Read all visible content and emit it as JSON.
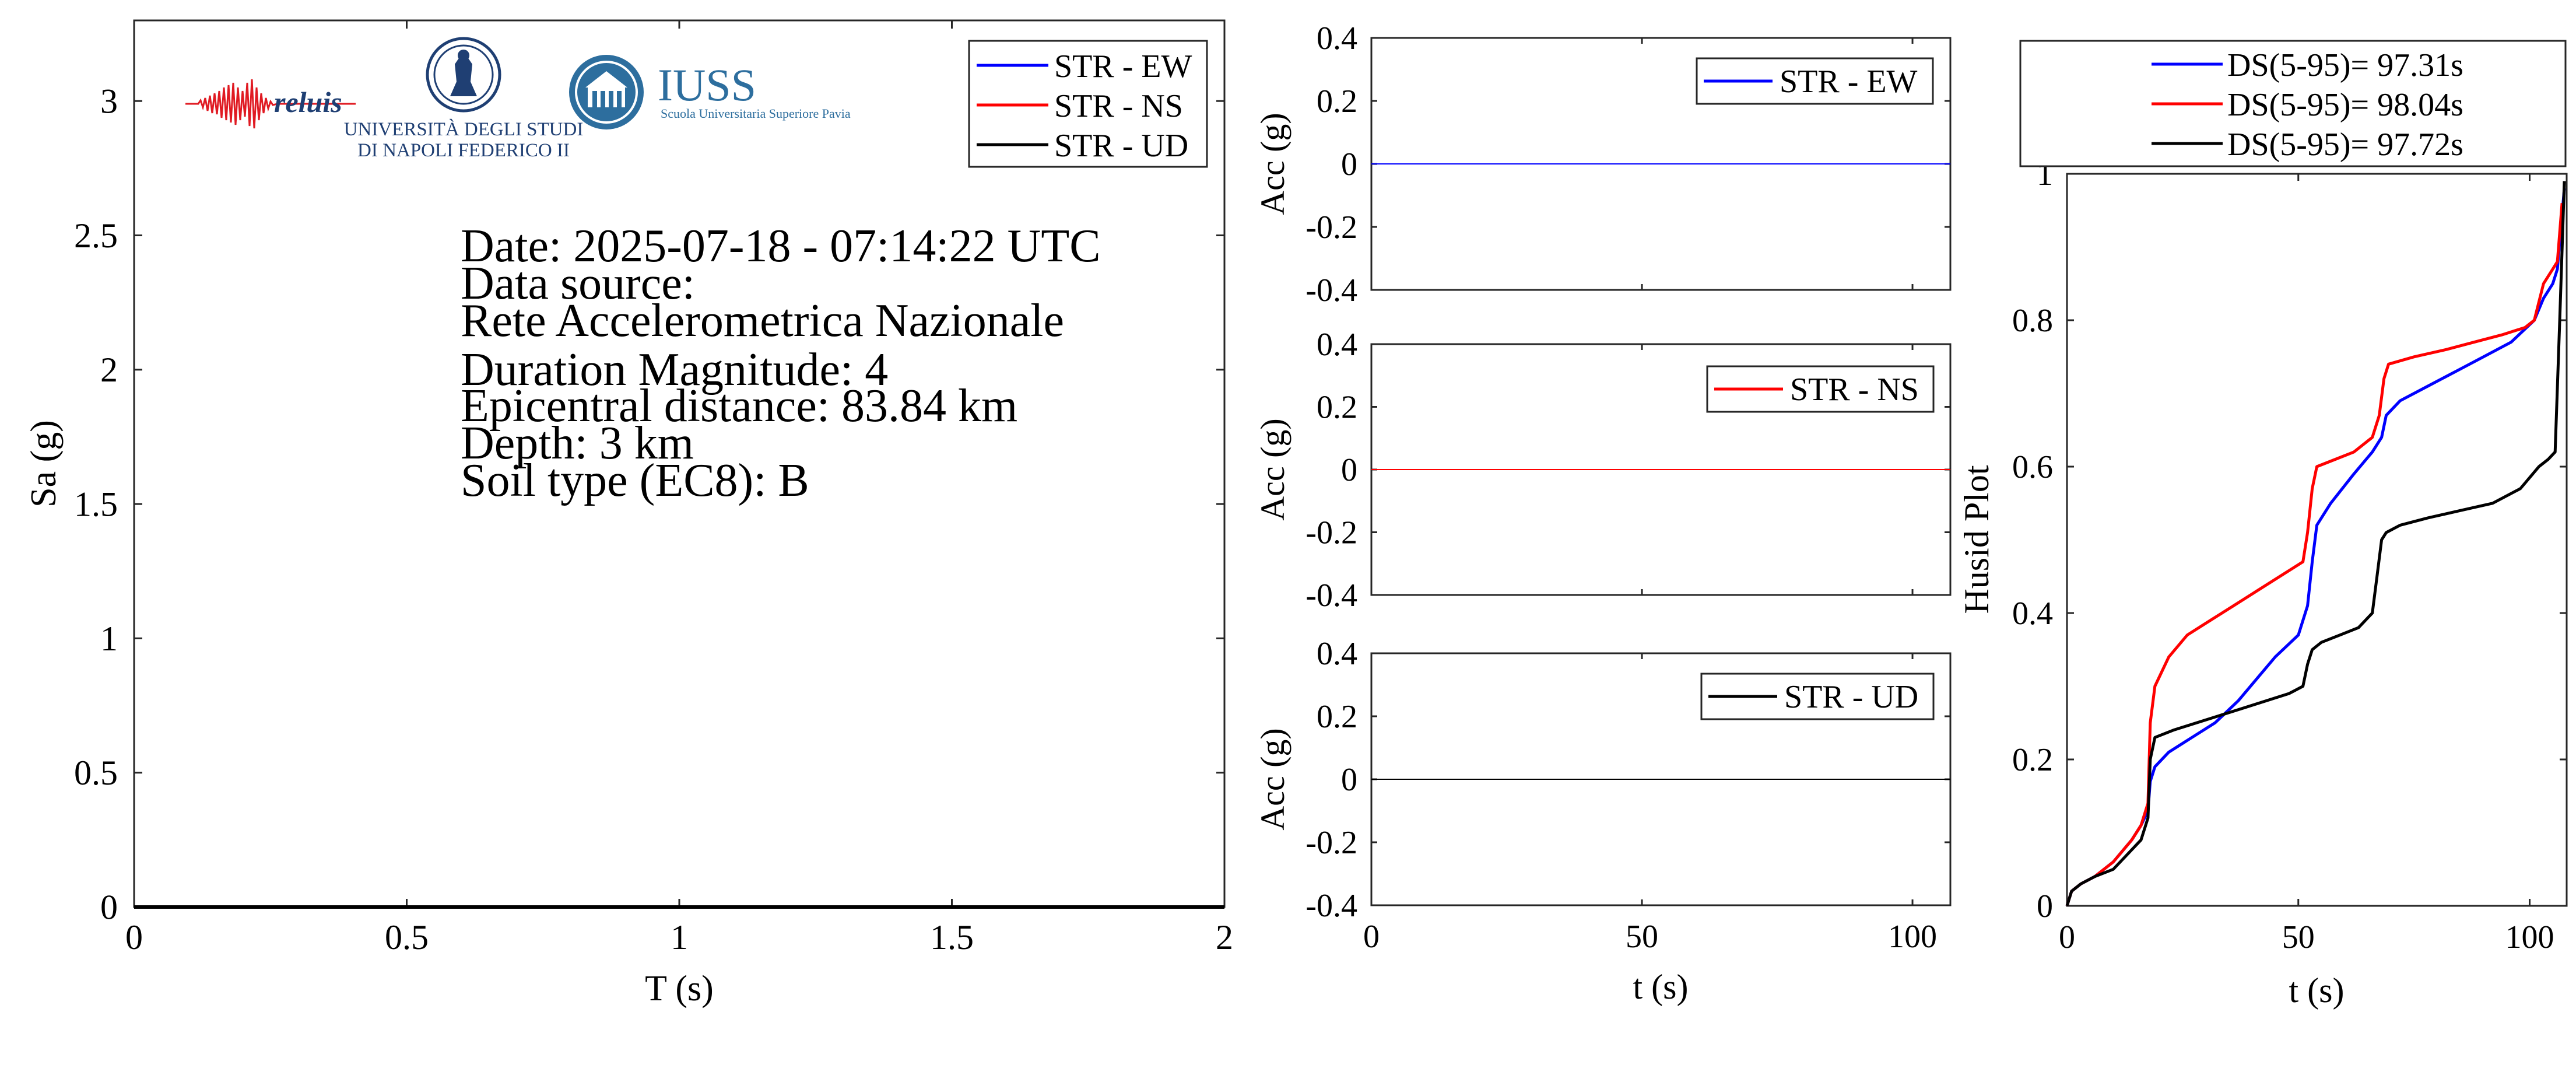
{
  "colors": {
    "ew": "#0000ff",
    "ns": "#ff0000",
    "ud": "#000000",
    "reluis_red": "#e01a22",
    "unina_blue": "#1f3f73",
    "iuss_blue": "#2d6e9e"
  },
  "logos": {
    "reluis": "reluis",
    "unina_line1": "UNIVERSITÀ DEGLI STUDI",
    "unina_line2": "DI NAPOLI FEDERICO II",
    "iuss_title": "IUSS",
    "iuss_subtitle": "Scuola Universitaria Superiore Pavia"
  },
  "info": {
    "date": "Date: 2025-07-18 - 07:14:22 UTC",
    "source_label": "Data source:",
    "source": "Rete Accelerometrica Nazionale",
    "magnitude": "Duration Magnitude: 4",
    "distance": "Epicentral distance: 83.84 km",
    "depth": "Depth: 3 km",
    "soil": "Soil type (EC8): B"
  },
  "chart_data": [
    {
      "type": "line",
      "xlabel": "T (s)",
      "ylabel": "Sa (g)",
      "xlim": [
        0,
        2
      ],
      "ylim": [
        0,
        3.3
      ],
      "xticks": [
        0,
        0.5,
        1,
        1.5,
        2
      ],
      "xtick_labels": [
        "0",
        "0.5",
        "1",
        "1.5",
        "2"
      ],
      "yticks": [
        0,
        0.5,
        1,
        1.5,
        2,
        2.5,
        3
      ],
      "ytick_labels": [
        "0",
        "0.5",
        "1",
        "1.5",
        "2",
        "2.5",
        "3"
      ],
      "legend": "top-right",
      "grid": false,
      "series": [
        {
          "name": "STR - EW",
          "x": [
            0,
            2
          ],
          "y": [
            0,
            0
          ]
        },
        {
          "name": "STR - NS",
          "x": [
            0,
            2
          ],
          "y": [
            0,
            0
          ]
        },
        {
          "name": "STR - UD",
          "x": [
            0,
            2
          ],
          "y": [
            0,
            0
          ]
        }
      ]
    },
    {
      "type": "line",
      "xlabel": "",
      "ylabel": "Acc (g)",
      "xlim": [
        0,
        107
      ],
      "ylim": [
        -0.4,
        0.4
      ],
      "xticks": [
        0,
        50,
        100
      ],
      "yticks": [
        -0.4,
        -0.2,
        0,
        0.2,
        0.4
      ],
      "ytick_labels": [
        "-0.4",
        "-0.2",
        "0",
        "0.2",
        "0.4"
      ],
      "legend": "top-right",
      "series": [
        {
          "name": "STR - EW",
          "x": [
            0,
            107
          ],
          "y": [
            0,
            0
          ]
        }
      ]
    },
    {
      "type": "line",
      "xlabel": "",
      "ylabel": "Acc (g)",
      "xlim": [
        0,
        107
      ],
      "ylim": [
        -0.4,
        0.4
      ],
      "xticks": [
        0,
        50,
        100
      ],
      "yticks": [
        -0.4,
        -0.2,
        0,
        0.2,
        0.4
      ],
      "ytick_labels": [
        "-0.4",
        "-0.2",
        "0",
        "0.2",
        "0.4"
      ],
      "legend": "top-right",
      "series": [
        {
          "name": "STR - NS",
          "x": [
            0,
            107
          ],
          "y": [
            0,
            0
          ]
        }
      ]
    },
    {
      "type": "line",
      "xlabel": "t (s)",
      "ylabel": "Acc (g)",
      "xlim": [
        0,
        107
      ],
      "ylim": [
        -0.4,
        0.4
      ],
      "xticks": [
        0,
        50,
        100
      ],
      "xtick_labels": [
        "0",
        "50",
        "100"
      ],
      "yticks": [
        -0.4,
        -0.2,
        0,
        0.2,
        0.4
      ],
      "ytick_labels": [
        "-0.4",
        "-0.2",
        "0",
        "0.2",
        "0.4"
      ],
      "legend": "top-right",
      "series": [
        {
          "name": "STR - UD",
          "x": [
            0,
            107
          ],
          "y": [
            0,
            0
          ]
        }
      ]
    },
    {
      "type": "line",
      "xlabel": "t (s)",
      "ylabel": "Husid Plot",
      "xlim": [
        0,
        108
      ],
      "ylim": [
        0,
        1
      ],
      "xticks": [
        0,
        50,
        100
      ],
      "xtick_labels": [
        "0",
        "50",
        "100"
      ],
      "yticks": [
        0,
        0.2,
        0.4,
        0.6,
        0.8,
        1
      ],
      "ytick_labels": [
        "0",
        "0.2",
        "0.4",
        "0.6",
        "0.8",
        "1"
      ],
      "legend": "outside-top",
      "series": [
        {
          "name": "DS(5-95)= 97.31s",
          "x": [
            0,
            1,
            3,
            6,
            10,
            14,
            16,
            17.5,
            18,
            19,
            22,
            27,
            32,
            37,
            41,
            45,
            50,
            52,
            53,
            54,
            57,
            62,
            66,
            68,
            69,
            72,
            78,
            84,
            90,
            96,
            101,
            103,
            105,
            106,
            106.8,
            107.5
          ],
          "y": [
            0,
            0.02,
            0.03,
            0.04,
            0.06,
            0.09,
            0.11,
            0.13,
            0.17,
            0.19,
            0.21,
            0.23,
            0.25,
            0.28,
            0.31,
            0.34,
            0.37,
            0.41,
            0.47,
            0.52,
            0.55,
            0.59,
            0.62,
            0.64,
            0.67,
            0.69,
            0.71,
            0.73,
            0.75,
            0.77,
            0.8,
            0.83,
            0.85,
            0.87,
            0.93,
            0.98
          ]
        },
        {
          "name": "DS(5-95)= 98.04s",
          "x": [
            0,
            1,
            3,
            6,
            10,
            14,
            16,
            17.5,
            18,
            19,
            22,
            26,
            31,
            36,
            41,
            46,
            51,
            52,
            53,
            54,
            58,
            62,
            66,
            67.5,
            68.5,
            69.5,
            75,
            82,
            88,
            94,
            99,
            101,
            103,
            105,
            106,
            107
          ],
          "y": [
            0,
            0.02,
            0.03,
            0.04,
            0.06,
            0.09,
            0.11,
            0.14,
            0.25,
            0.3,
            0.34,
            0.37,
            0.39,
            0.41,
            0.43,
            0.45,
            0.47,
            0.51,
            0.57,
            0.6,
            0.61,
            0.62,
            0.64,
            0.67,
            0.72,
            0.74,
            0.75,
            0.76,
            0.77,
            0.78,
            0.79,
            0.8,
            0.85,
            0.87,
            0.88,
            0.96
          ]
        },
        {
          "name": "DS(5-95)= 97.72s",
          "x": [
            0,
            1,
            3,
            6,
            10,
            13,
            16,
            17.5,
            18,
            19,
            23,
            28,
            33,
            38,
            43,
            48,
            51,
            52,
            53,
            55,
            59,
            63,
            66,
            67,
            68,
            69,
            72,
            78,
            85,
            92,
            98,
            102,
            104,
            105.5,
            106.5,
            107.5
          ],
          "y": [
            0,
            0.02,
            0.03,
            0.04,
            0.05,
            0.07,
            0.09,
            0.12,
            0.2,
            0.23,
            0.24,
            0.25,
            0.26,
            0.27,
            0.28,
            0.29,
            0.3,
            0.33,
            0.35,
            0.36,
            0.37,
            0.38,
            0.4,
            0.45,
            0.5,
            0.51,
            0.52,
            0.53,
            0.54,
            0.55,
            0.57,
            0.6,
            0.61,
            0.62,
            0.8,
            0.99
          ]
        }
      ]
    }
  ]
}
